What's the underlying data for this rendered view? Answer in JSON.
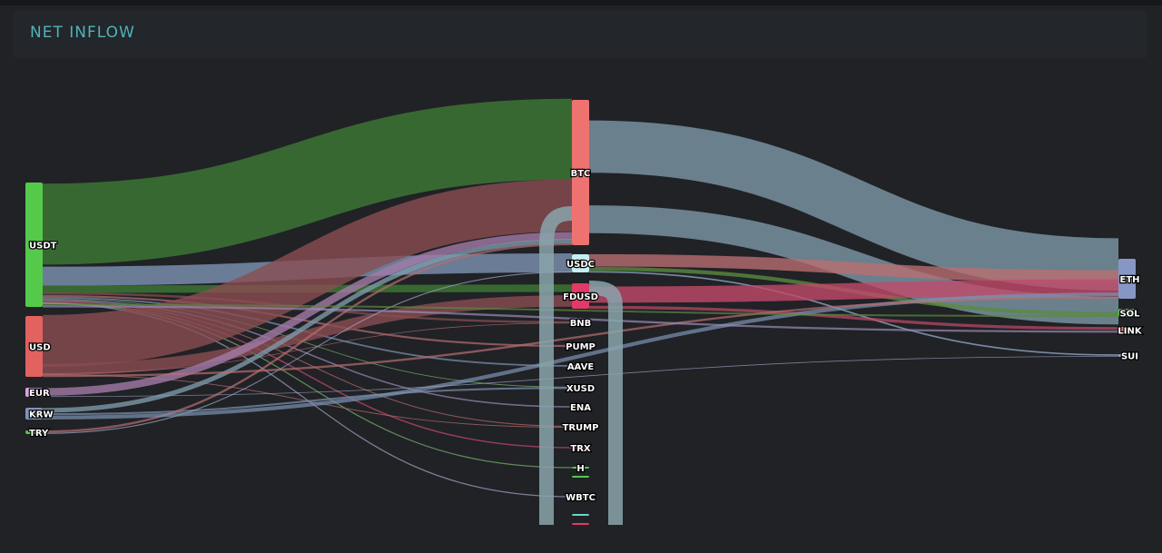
{
  "header": {
    "title": "NET INFLOW"
  },
  "chart_data": {
    "type": "sankey",
    "title": "NET INFLOW",
    "columns": [
      [
        "USDT",
        "USD",
        "EUR",
        "KRW",
        "TRY"
      ],
      [
        "BTC",
        "USDC",
        "FDUSD",
        "BNB",
        "PUMP",
        "AAVE",
        "XUSD",
        "ENA",
        "TRUMP",
        "TRX",
        "H",
        "",
        "WBTC",
        "",
        ""
      ],
      [
        "ETH",
        "SOL",
        "LINK",
        "SUI"
      ]
    ],
    "nodes": [
      {
        "name": "USDT",
        "color": "#55c94a"
      },
      {
        "name": "USD",
        "color": "#e2625f"
      },
      {
        "name": "EUR",
        "color": "#d9a3e4"
      },
      {
        "name": "KRW",
        "color": "#7f95bd"
      },
      {
        "name": "TRY",
        "color": "#55c94a"
      },
      {
        "name": "BTC",
        "color": "#ee7370"
      },
      {
        "name": "USDC",
        "color": "#c4eef2"
      },
      {
        "name": "FDUSD",
        "color": "#e23a68"
      },
      {
        "name": "BNB",
        "color": "#c4eef2"
      },
      {
        "name": "PUMP",
        "color": "#ffffff"
      },
      {
        "name": "AAVE",
        "color": "#8f9fcc"
      },
      {
        "name": "XUSD",
        "color": "#55c94a"
      },
      {
        "name": "ENA",
        "color": "#cfc3e6"
      },
      {
        "name": "TRUMP",
        "color": "#e2625f"
      },
      {
        "name": "TRX",
        "color": "#e23a68"
      },
      {
        "name": "H",
        "color": "#55c94a"
      },
      {
        "name": "",
        "color": "#55c94a"
      },
      {
        "name": "WBTC",
        "color": "#9fa7c4"
      },
      {
        "name": "",
        "color": "#6fd3c8"
      },
      {
        "name": "",
        "color": "#e23a68"
      },
      {
        "name": "ETH",
        "color": "#8797c5"
      },
      {
        "name": "SOL",
        "color": "#55c94a"
      },
      {
        "name": "LINK",
        "color": "#ee7370"
      },
      {
        "name": "SUI",
        "color": "#9fb5d8"
      }
    ],
    "links": [
      {
        "source": "USDT",
        "target": "BTC",
        "value": 80,
        "color": "#3f7a34"
      },
      {
        "source": "USDT",
        "target": "USDC",
        "value": 20,
        "color": "#7d93b3"
      },
      {
        "source": "USDT",
        "target": "FDUSD",
        "value": 5,
        "color": "#3f7a34"
      },
      {
        "source": "USDT",
        "target": "BNB",
        "value": 3,
        "color": "#8a4e52"
      },
      {
        "source": "USDT",
        "target": "PUMP",
        "value": 2,
        "color": "#b86e70"
      },
      {
        "source": "USDT",
        "target": "AAVE",
        "value": 1.5,
        "color": "#7d93b3"
      },
      {
        "source": "USDT",
        "target": "XUSD",
        "value": 1,
        "color": "#7cb36e"
      },
      {
        "source": "USDT",
        "target": "ENA",
        "value": 1,
        "color": "#9a8ab5"
      },
      {
        "source": "USDT",
        "target": "TRUMP",
        "value": 1,
        "color": "#b86e70"
      },
      {
        "source": "USDT",
        "target": "TRX",
        "value": 1,
        "color": "#c24a6a"
      },
      {
        "source": "USDT",
        "target": "H",
        "value": 0.5,
        "color": "#7cb36e"
      },
      {
        "source": "USDT",
        "target": "WBTC",
        "value": 0.5,
        "color": "#9fa7c4"
      },
      {
        "source": "USD",
        "target": "BTC",
        "value": 55,
        "color": "#8a4e52"
      },
      {
        "source": "USD",
        "target": "FDUSD",
        "value": 8,
        "color": "#8a4e52"
      },
      {
        "source": "USD",
        "target": "BNB",
        "value": 1,
        "color": "#b86e70"
      },
      {
        "source": "USD",
        "target": "TRUMP",
        "value": 1,
        "color": "#b86e70"
      },
      {
        "source": "EUR",
        "target": "BTC",
        "value": 7,
        "color": "#a37aa8"
      },
      {
        "source": "KRW",
        "target": "BTC",
        "value": 4,
        "color": "#7d98a8"
      },
      {
        "source": "KRW",
        "target": "XUSD",
        "value": 2,
        "color": "#7d93b3"
      },
      {
        "source": "TRY",
        "target": "BTC",
        "value": 2,
        "color": "#b86e70"
      },
      {
        "source": "TRY",
        "target": "USDC",
        "value": 1,
        "color": "#9fa7c4"
      },
      {
        "source": "BTC",
        "target": "ETH",
        "value": 9,
        "color": "#7d98a8"
      },
      {
        "source": "BTC",
        "target": "SOL",
        "value": 5,
        "color": "#7d98a8"
      },
      {
        "source": "USDC",
        "target": "ETH",
        "value": 10,
        "color": "#b86e70"
      },
      {
        "source": "USDC",
        "target": "SOL",
        "value": 4,
        "color": "#5a8a3e"
      },
      {
        "source": "USDC",
        "target": "SUI",
        "value": 1,
        "color": "#9fb5d8"
      },
      {
        "source": "FDUSD",
        "target": "ETH",
        "value": 8,
        "color": "#c24a6a"
      },
      {
        "source": "FDUSD",
        "target": "LINK",
        "value": 1,
        "color": "#c24a6a"
      },
      {
        "source": "KRW",
        "target": "ETH",
        "value": 3,
        "color": "#7d93b3"
      },
      {
        "source": "USD",
        "target": "ETH",
        "value": 2,
        "color": "#b86e70"
      },
      {
        "source": "USDT",
        "target": "SOL",
        "value": 2,
        "color": "#5a8a3e"
      },
      {
        "source": "USDT",
        "target": "LINK",
        "value": 1,
        "color": "#9a8ab5"
      },
      {
        "source": "EUR",
        "target": "SUI",
        "value": 0.5,
        "color": "#9fa7c4"
      }
    ]
  }
}
